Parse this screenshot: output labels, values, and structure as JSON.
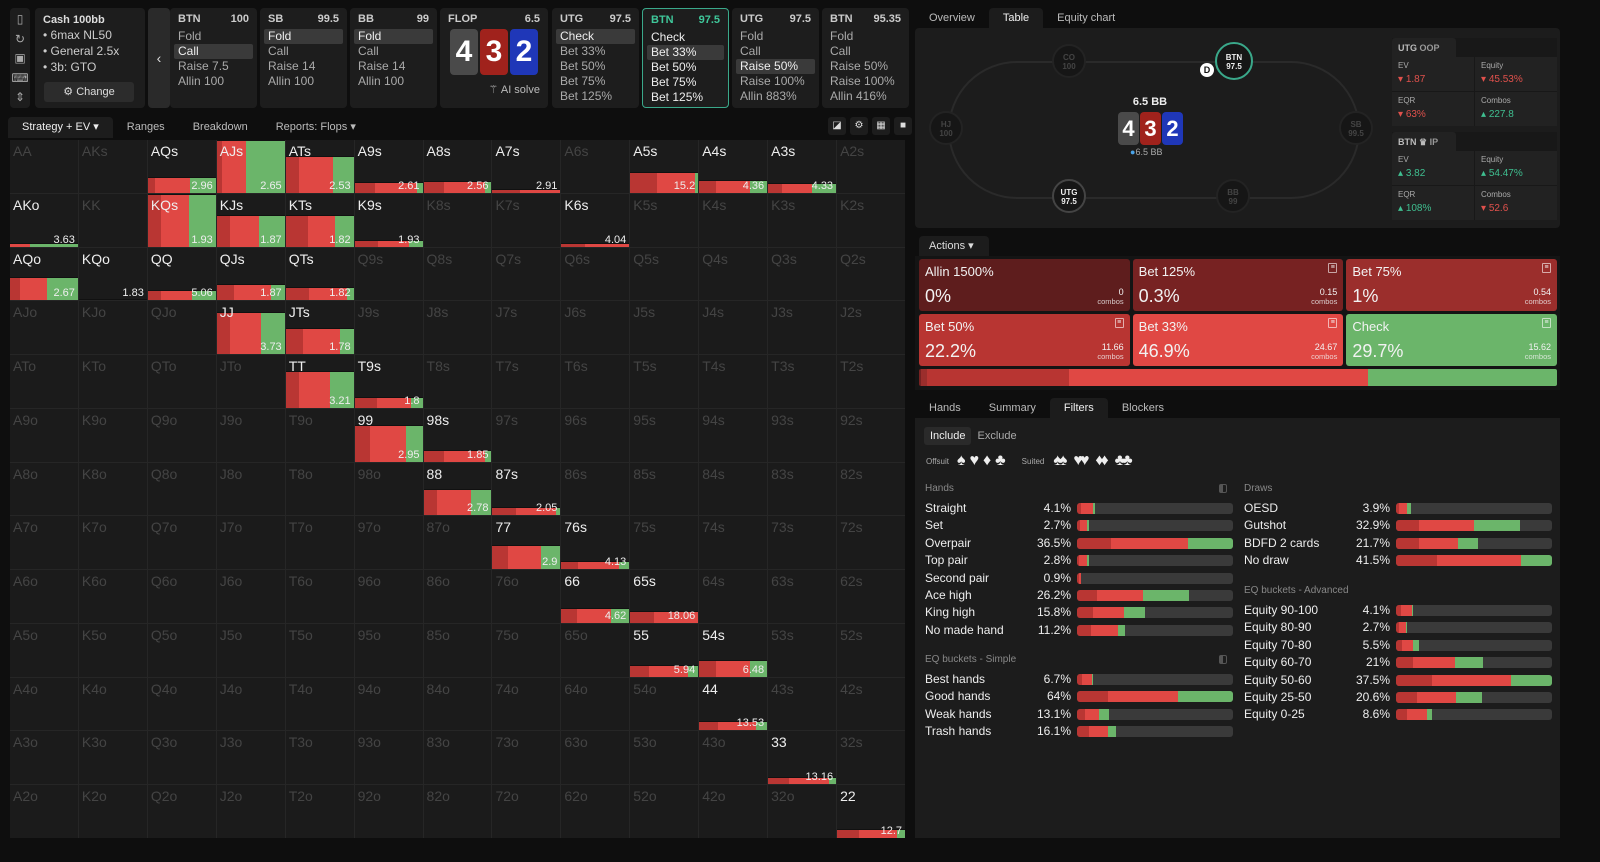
{
  "sidebar_icons": [
    "bookmark-icon",
    "refresh-icon",
    "save-icon",
    "gamepad-icon",
    "fit-vertical-icon"
  ],
  "info": {
    "title": "Cash 100bb",
    "lines": [
      "• 6max NL50",
      "• General 2.5x",
      "• 3b: GTO"
    ],
    "change": "Change"
  },
  "nav_cards": [
    {
      "pos": "BTN",
      "stack": "100",
      "options": [
        "Fold",
        "Call",
        "Raise 7.5",
        "Allin 100"
      ],
      "sel": 1
    },
    {
      "pos": "SB",
      "stack": "99.5",
      "options": [
        "Fold",
        "Call",
        "Raise 14",
        "Allin 100"
      ],
      "sel": 0
    },
    {
      "pos": "BB",
      "stack": "99",
      "options": [
        "Fold",
        "Call",
        "Raise 14",
        "Allin 100"
      ],
      "sel": 0
    },
    {
      "pos": "UTG",
      "stack": "97.5",
      "options": [
        "Check",
        "Bet 33%",
        "Bet 50%",
        "Bet 75%",
        "Bet 125%"
      ],
      "sel": 0
    },
    {
      "pos": "BTN",
      "stack": "97.5",
      "options": [
        "Check",
        "Bet 33%",
        "Bet 50%",
        "Bet 75%",
        "Bet 125%"
      ],
      "sel": 1,
      "active": true
    },
    {
      "pos": "UTG",
      "stack": "97.5",
      "options": [
        "Fold",
        "Call",
        "Raise 50%",
        "Raise 100%",
        "Allin 883%"
      ],
      "sel": 2
    },
    {
      "pos": "BTN",
      "stack": "95.35",
      "options": [
        "Fold",
        "Call",
        "Raise 50%",
        "Raise 100%",
        "Allin 416%"
      ],
      "sel": -1
    }
  ],
  "flop": {
    "label": "FLOP",
    "pot": "6.5",
    "cards": [
      {
        "r": "4",
        "color": "#4a4a4a"
      },
      {
        "r": "3",
        "color": "#a0221c"
      },
      {
        "r": "2",
        "color": "#1f37b8"
      }
    ],
    "ai_solve": "AI solve"
  },
  "left_tabs": [
    "Strategy + EV",
    "Ranges",
    "Breakdown",
    "Reports: Flops"
  ],
  "grid": {
    "rows": [
      [
        "AA",
        "AKs",
        "AQs",
        "AJs",
        "ATs",
        "A9s",
        "A8s",
        "A7s",
        "A6s",
        "A5s",
        "A4s",
        "A3s",
        "A2s"
      ],
      [
        "AKo",
        "KK",
        "KQs",
        "KJs",
        "KTs",
        "K9s",
        "K8s",
        "K7s",
        "K6s",
        "K5s",
        "K4s",
        "K3s",
        "K2s"
      ],
      [
        "AQo",
        "KQo",
        "QQ",
        "QJs",
        "QTs",
        "Q9s",
        "Q8s",
        "Q7s",
        "Q6s",
        "Q5s",
        "Q4s",
        "Q3s",
        "Q2s"
      ],
      [
        "AJo",
        "KJo",
        "QJo",
        "JJ",
        "JTs",
        "J9s",
        "J8s",
        "J7s",
        "J6s",
        "J5s",
        "J4s",
        "J3s",
        "J2s"
      ],
      [
        "ATo",
        "KTo",
        "QTo",
        "JTo",
        "TT",
        "T9s",
        "T8s",
        "T7s",
        "T6s",
        "T5s",
        "T4s",
        "T3s",
        "T2s"
      ],
      [
        "A9o",
        "K9o",
        "Q9o",
        "J9o",
        "T9o",
        "99",
        "98s",
        "97s",
        "96s",
        "95s",
        "94s",
        "93s",
        "92s"
      ],
      [
        "A8o",
        "K8o",
        "Q8o",
        "J8o",
        "T8o",
        "98o",
        "88",
        "87s",
        "86s",
        "85s",
        "84s",
        "83s",
        "82s"
      ],
      [
        "A7o",
        "K7o",
        "Q7o",
        "J7o",
        "T7o",
        "97o",
        "87o",
        "77",
        "76s",
        "75s",
        "74s",
        "73s",
        "72s"
      ],
      [
        "A6o",
        "K6o",
        "Q6o",
        "J6o",
        "T6o",
        "96o",
        "86o",
        "76o",
        "66",
        "65s",
        "64s",
        "63s",
        "62s"
      ],
      [
        "A5o",
        "K5o",
        "Q5o",
        "J5o",
        "T5o",
        "95o",
        "85o",
        "75o",
        "65o",
        "55",
        "54s",
        "53s",
        "52s"
      ],
      [
        "A4o",
        "K4o",
        "Q4o",
        "J4o",
        "T4o",
        "94o",
        "84o",
        "74o",
        "64o",
        "54o",
        "44",
        "43s",
        "42s"
      ],
      [
        "A3o",
        "K3o",
        "Q3o",
        "J3o",
        "T3o",
        "93o",
        "83o",
        "73o",
        "63o",
        "53o",
        "43o",
        "33",
        "32s"
      ],
      [
        "A2o",
        "K2o",
        "Q2o",
        "J2o",
        "T2o",
        "92o",
        "82o",
        "72o",
        "62o",
        "52o",
        "42o",
        "32o",
        "22"
      ]
    ],
    "hands": {
      "AQs": {
        "f": 0.3,
        "mix": [
          0.1,
          0.52,
          0.38
        ],
        "ev": "2.96"
      },
      "AJs": {
        "f": 1.0,
        "mix": [
          0.08,
          0.35,
          0.57
        ],
        "ev": "2.65"
      },
      "ATs": {
        "f": 0.7,
        "mix": [
          0.2,
          0.5,
          0.3
        ],
        "ev": "2.53"
      },
      "A9s": {
        "f": 0.2,
        "mix": [
          0.3,
          0.62,
          0.08
        ],
        "ev": "2.61"
      },
      "A8s": {
        "f": 0.22,
        "mix": [
          0.3,
          0.6,
          0.1
        ],
        "ev": "2.56"
      },
      "A7s": {
        "f": 0.07,
        "mix": [
          0.4,
          0.6,
          0
        ],
        "ev": "2.91"
      },
      "A5s": {
        "f": 0.4,
        "mix": [
          0.4,
          0.55,
          0.05
        ],
        "ev": "15.2"
      },
      "A4s": {
        "f": 0.24,
        "mix": [
          0.25,
          0.5,
          0.25
        ],
        "ev": "4.36"
      },
      "A3s": {
        "f": 0.18,
        "mix": [
          0.2,
          0.45,
          0.35
        ],
        "ev": "4.33"
      },
      "AKo": {
        "f": 0.07,
        "mix": [
          0,
          0.3,
          0.7
        ],
        "ev": "3.63"
      },
      "KQs": {
        "f": 1.0,
        "mix": [
          0.2,
          0.4,
          0.4
        ],
        "ev": "1.93"
      },
      "KJs": {
        "f": 0.6,
        "mix": [
          0.2,
          0.42,
          0.38
        ],
        "ev": "1.87"
      },
      "KTs": {
        "f": 0.6,
        "mix": [
          0.33,
          0.4,
          0.27
        ],
        "ev": "1.82"
      },
      "K9s": {
        "f": 0.12,
        "mix": [
          0.35,
          0.45,
          0.2
        ],
        "ev": "1.93"
      },
      "K6s": {
        "f": 0.06,
        "mix": [
          0.35,
          0.65,
          0
        ],
        "ev": "4.04"
      },
      "AQo": {
        "f": 0.45,
        "mix": [
          0.15,
          0.4,
          0.45
        ],
        "ev": "2.67"
      },
      "KQo": {
        "f": 0.03,
        "mix": [
          0.3,
          0.3,
          0.4
        ],
        "ev": "1.83"
      },
      "QQ": {
        "f": 0.2,
        "mix": [
          0.2,
          0.45,
          0.35
        ],
        "ev": "5.06"
      },
      "QJs": {
        "f": 0.3,
        "mix": [
          0.25,
          0.55,
          0.2
        ],
        "ev": "1.87"
      },
      "QTs": {
        "f": 0.25,
        "mix": [
          0.35,
          0.55,
          0.1
        ],
        "ev": "1.82"
      },
      "JJ": {
        "f": 0.8,
        "mix": [
          0.2,
          0.45,
          0.35
        ],
        "ev": "3.73"
      },
      "JTs": {
        "f": 0.5,
        "mix": [
          0.25,
          0.55,
          0.2
        ],
        "ev": "1.78"
      },
      "TT": {
        "f": 0.7,
        "mix": [
          0.2,
          0.45,
          0.35
        ],
        "ev": "3.21"
      },
      "T9s": {
        "f": 0.2,
        "mix": [
          0.33,
          0.5,
          0.17
        ],
        "ev": "1.8"
      },
      "99": {
        "f": 0.7,
        "mix": [
          0.23,
          0.52,
          0.25
        ],
        "ev": "2.95"
      },
      "98s": {
        "f": 0.22,
        "mix": [
          0.3,
          0.6,
          0.1
        ],
        "ev": "1.85"
      },
      "88": {
        "f": 0.5,
        "mix": [
          0.2,
          0.5,
          0.3
        ],
        "ev": "2.78"
      },
      "87s": {
        "f": 0.15,
        "mix": [
          0.35,
          0.58,
          0.07
        ],
        "ev": "2.05"
      },
      "77": {
        "f": 0.45,
        "mix": [
          0.23,
          0.48,
          0.29
        ],
        "ev": "2.9"
      },
      "76s": {
        "f": 0.16,
        "mix": [
          0.25,
          0.6,
          0.15
        ],
        "ev": "4.13"
      },
      "66": {
        "f": 0.28,
        "mix": [
          0.23,
          0.5,
          0.27
        ],
        "ev": "4.62"
      },
      "65s": {
        "f": 0.22,
        "mix": [
          0.35,
          0.65,
          0
        ],
        "ev": "18.06"
      },
      "55": {
        "f": 0.22,
        "mix": [
          0.27,
          0.58,
          0.15
        ],
        "ev": "5.94"
      },
      "54s": {
        "f": 0.32,
        "mix": [
          0.25,
          0.5,
          0.25
        ],
        "ev": "6.48"
      },
      "44": {
        "f": 0.18,
        "mix": [
          0.27,
          0.57,
          0.16
        ],
        "ev": "13.53"
      },
      "33": {
        "f": 0.13,
        "mix": [
          0.3,
          0.6,
          0.1
        ],
        "ev": "13.16"
      },
      "22": {
        "f": 0.17,
        "mix": [
          0.33,
          0.55,
          0.12
        ],
        "ev": "12.7"
      }
    }
  },
  "right_tabs": [
    "Overview",
    "Table",
    "Equity chart"
  ],
  "table": {
    "pot": "6.5 BB",
    "bet": "6.5 BB",
    "dealer": "D",
    "seats": [
      {
        "pos": "CO",
        "stack": "100"
      },
      {
        "pos": "BTN",
        "stack": "97.5"
      },
      {
        "pos": "HJ",
        "stack": "100"
      },
      {
        "pos": "SB",
        "stack": "99.5"
      },
      {
        "pos": "UTG",
        "stack": "97.5"
      },
      {
        "pos": "BB",
        "stack": "99"
      }
    ]
  },
  "stats": [
    {
      "player": "UTG",
      "tag": "OOP",
      "items": [
        {
          "k": "EV",
          "v": "1.87",
          "dir": "down"
        },
        {
          "k": "Equity",
          "v": "45.53%",
          "dir": "down"
        },
        {
          "k": "EQR",
          "v": "63%",
          "dir": "down"
        },
        {
          "k": "Combos",
          "v": "227.8",
          "dir": "up"
        }
      ]
    },
    {
      "player": "BTN",
      "tag": "IP",
      "items": [
        {
          "k": "EV",
          "v": "3.82",
          "dir": "up"
        },
        {
          "k": "Equity",
          "v": "54.47%",
          "dir": "up"
        },
        {
          "k": "EQR",
          "v": "108%",
          "dir": "up"
        },
        {
          "k": "Combos",
          "v": "52.6",
          "dir": "down"
        }
      ]
    }
  ],
  "actions": {
    "label": "Actions",
    "combos_label": "combos",
    "cards": [
      {
        "name": "Allin 1500%",
        "pct": "0%",
        "combos": "0",
        "freq": 0,
        "color": "#5e1d1d",
        "icon": false
      },
      {
        "name": "Bet 125%",
        "pct": "0.3%",
        "combos": "0.15",
        "freq": 0.3,
        "color": "#772222",
        "icon": true
      },
      {
        "name": "Bet 75%",
        "pct": "1%",
        "combos": "0.54",
        "freq": 1,
        "color": "#9b2e2c",
        "icon": true
      },
      {
        "name": "Bet 50%",
        "pct": "22.2%",
        "combos": "11.66",
        "freq": 22.2,
        "color": "#b83532",
        "icon": true
      },
      {
        "name": "Bet 33%",
        "pct": "46.9%",
        "combos": "24.67",
        "freq": 46.9,
        "color": "#e04844",
        "icon": true
      },
      {
        "name": "Check",
        "pct": "29.7%",
        "combos": "15.62",
        "freq": 29.7,
        "color": "#6bb56a",
        "icon": true
      }
    ]
  },
  "bottom_tabs": [
    "Hands",
    "Summary",
    "Filters",
    "Blockers"
  ],
  "filters": {
    "include": "Include",
    "exclude": "Exclude",
    "offsuit": "Offsuit",
    "suited": "Suited",
    "suits": [
      "♠",
      "♥",
      "♦",
      "♣"
    ],
    "sections": [
      {
        "title": "Hands",
        "rows": [
          {
            "l": "Straight",
            "p": "4.1%",
            "v": 4.1,
            "mix": [
              0.25,
              0.65,
              0.1
            ]
          },
          {
            "l": "Set",
            "p": "2.7%",
            "v": 2.7,
            "mix": [
              0.3,
              0.6,
              0.1
            ]
          },
          {
            "l": "Overpair",
            "p": "36.5%",
            "v": 36.5,
            "mix": [
              0.22,
              0.49,
              0.29
            ]
          },
          {
            "l": "Top pair",
            "p": "2.8%",
            "v": 2.8,
            "mix": [
              0.2,
              0.6,
              0.2
            ]
          },
          {
            "l": "Second pair",
            "p": "0.9%",
            "v": 0.9,
            "mix": [
              0.5,
              0.5,
              0
            ]
          },
          {
            "l": "Ace high",
            "p": "26.2%",
            "v": 26.2,
            "mix": [
              0.18,
              0.41,
              0.41
            ]
          },
          {
            "l": "King high",
            "p": "15.8%",
            "v": 15.8,
            "mix": [
              0.24,
              0.45,
              0.31
            ]
          },
          {
            "l": "No made hand",
            "p": "11.2%",
            "v": 11.2,
            "mix": [
              0.3,
              0.55,
              0.15
            ]
          }
        ]
      },
      {
        "title": "EQ buckets - Simple",
        "rows": [
          {
            "l": "Best hands",
            "p": "6.7%",
            "v": 6.7,
            "mix": [
              0.3,
              0.6,
              0.1
            ]
          },
          {
            "l": "Good hands",
            "p": "64%",
            "v": 64,
            "mix": [
              0.2,
              0.45,
              0.35
            ]
          },
          {
            "l": "Weak hands",
            "p": "13.1%",
            "v": 13.1,
            "mix": [
              0.25,
              0.45,
              0.3
            ]
          },
          {
            "l": "Trash hands",
            "p": "16.1%",
            "v": 16.1,
            "mix": [
              0.3,
              0.5,
              0.2
            ]
          }
        ]
      },
      {
        "title": "Draws",
        "rows": [
          {
            "l": "OESD",
            "p": "3.9%",
            "v": 3.9,
            "mix": [
              0.2,
              0.55,
              0.25
            ]
          },
          {
            "l": "Gutshot",
            "p": "32.9%",
            "v": 32.9,
            "mix": [
              0.19,
              0.44,
              0.37
            ]
          },
          {
            "l": "BDFD 2 cards",
            "p": "21.7%",
            "v": 21.7,
            "mix": [
              0.28,
              0.48,
              0.24
            ]
          },
          {
            "l": "No draw",
            "p": "41.5%",
            "v": 41.5,
            "mix": [
              0.26,
              0.54,
              0.2
            ]
          }
        ]
      },
      {
        "title": "EQ buckets - Advanced",
        "rows": [
          {
            "l": "Equity 90-100",
            "p": "4.1%",
            "v": 4.1,
            "mix": [
              0.3,
              0.65,
              0.05
            ]
          },
          {
            "l": "Equity 80-90",
            "p": "2.7%",
            "v": 2.7,
            "mix": [
              0.3,
              0.6,
              0.1
            ]
          },
          {
            "l": "Equity 70-80",
            "p": "5.5%",
            "v": 5.5,
            "mix": [
              0.25,
              0.5,
              0.25
            ]
          },
          {
            "l": "Equity 60-70",
            "p": "21%",
            "v": 21,
            "mix": [
              0.2,
              0.47,
              0.33
            ]
          },
          {
            "l": "Equity 50-60",
            "p": "37.5%",
            "v": 37.5,
            "mix": [
              0.23,
              0.51,
              0.26
            ]
          },
          {
            "l": "Equity 25-50",
            "p": "20.6%",
            "v": 20.6,
            "mix": [
              0.25,
              0.45,
              0.3
            ]
          },
          {
            "l": "Equity 0-25",
            "p": "8.6%",
            "v": 8.6,
            "mix": [
              0.3,
              0.57,
              0.13
            ]
          }
        ]
      }
    ]
  },
  "colors": {
    "dark": "#b93633",
    "red": "#e04844",
    "green": "#6bb56a",
    "accent": "#3aa88a"
  }
}
